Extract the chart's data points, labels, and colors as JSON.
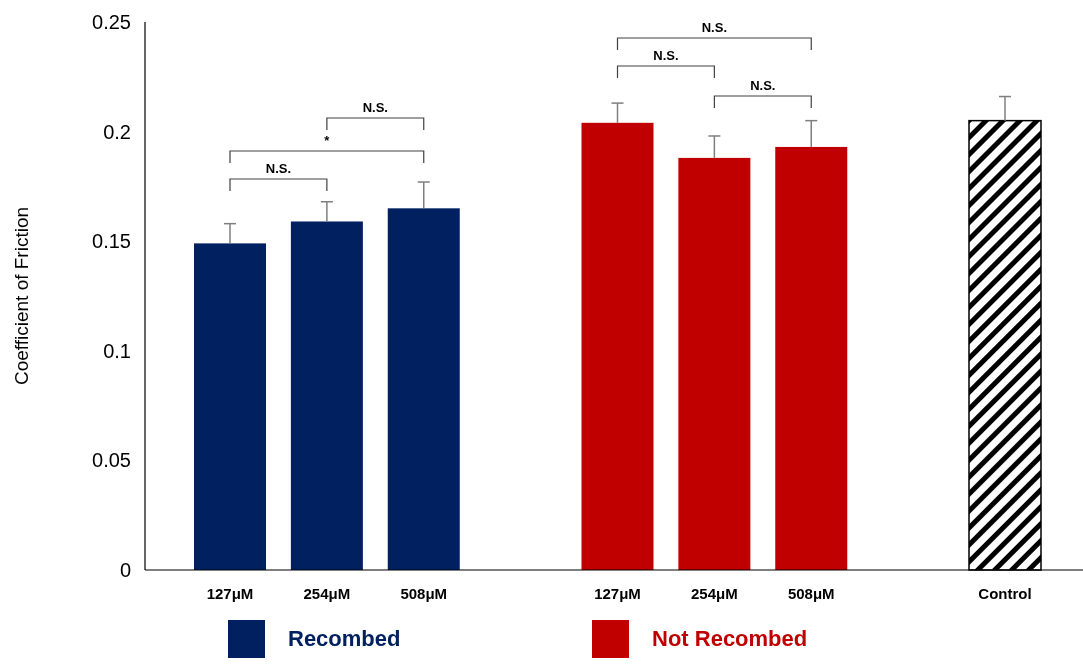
{
  "chart_data": {
    "type": "bar",
    "ylabel": "Coefficient of Friction",
    "categories": [
      "127μM",
      "254μM",
      "508μM",
      null,
      "127μM",
      "254μM",
      "508μM",
      null,
      "Control"
    ],
    "series": [
      {
        "name": "Recombed",
        "color": "#002060",
        "values": [
          0.149,
          0.159,
          0.165,
          null,
          null,
          null,
          null,
          null,
          null
        ],
        "errors": [
          [
            0.149,
            0.158
          ],
          [
            0.159,
            0.168
          ],
          [
            0.165,
            0.177
          ],
          null,
          null,
          null,
          null,
          null,
          null
        ]
      },
      {
        "name": "Not Recombed",
        "color": "#c00000",
        "values": [
          null,
          null,
          null,
          null,
          0.204,
          0.188,
          0.193,
          null,
          null
        ],
        "errors": [
          null,
          null,
          null,
          null,
          [
            0.204,
            0.213
          ],
          [
            0.188,
            0.198
          ],
          [
            0.193,
            0.205
          ],
          null,
          null
        ]
      },
      {
        "color": "#000000",
        "values": [
          null,
          null,
          null,
          null,
          null,
          null,
          null,
          null,
          0.205
        ],
        "errors": [
          null,
          null,
          null,
          null,
          null,
          null,
          null,
          null,
          [
            0.205,
            0.216
          ]
        ]
      }
    ],
    "ylim": [
      0,
      0.25
    ],
    "yticks": [
      0,
      0.05,
      0.1,
      0.15,
      0.2,
      0.25
    ],
    "grid": false,
    "legend": "bottom",
    "annotations": [
      "N.S.",
      "*",
      "N.S.",
      "N.S.",
      "N.S.",
      "N.S."
    ]
  }
}
